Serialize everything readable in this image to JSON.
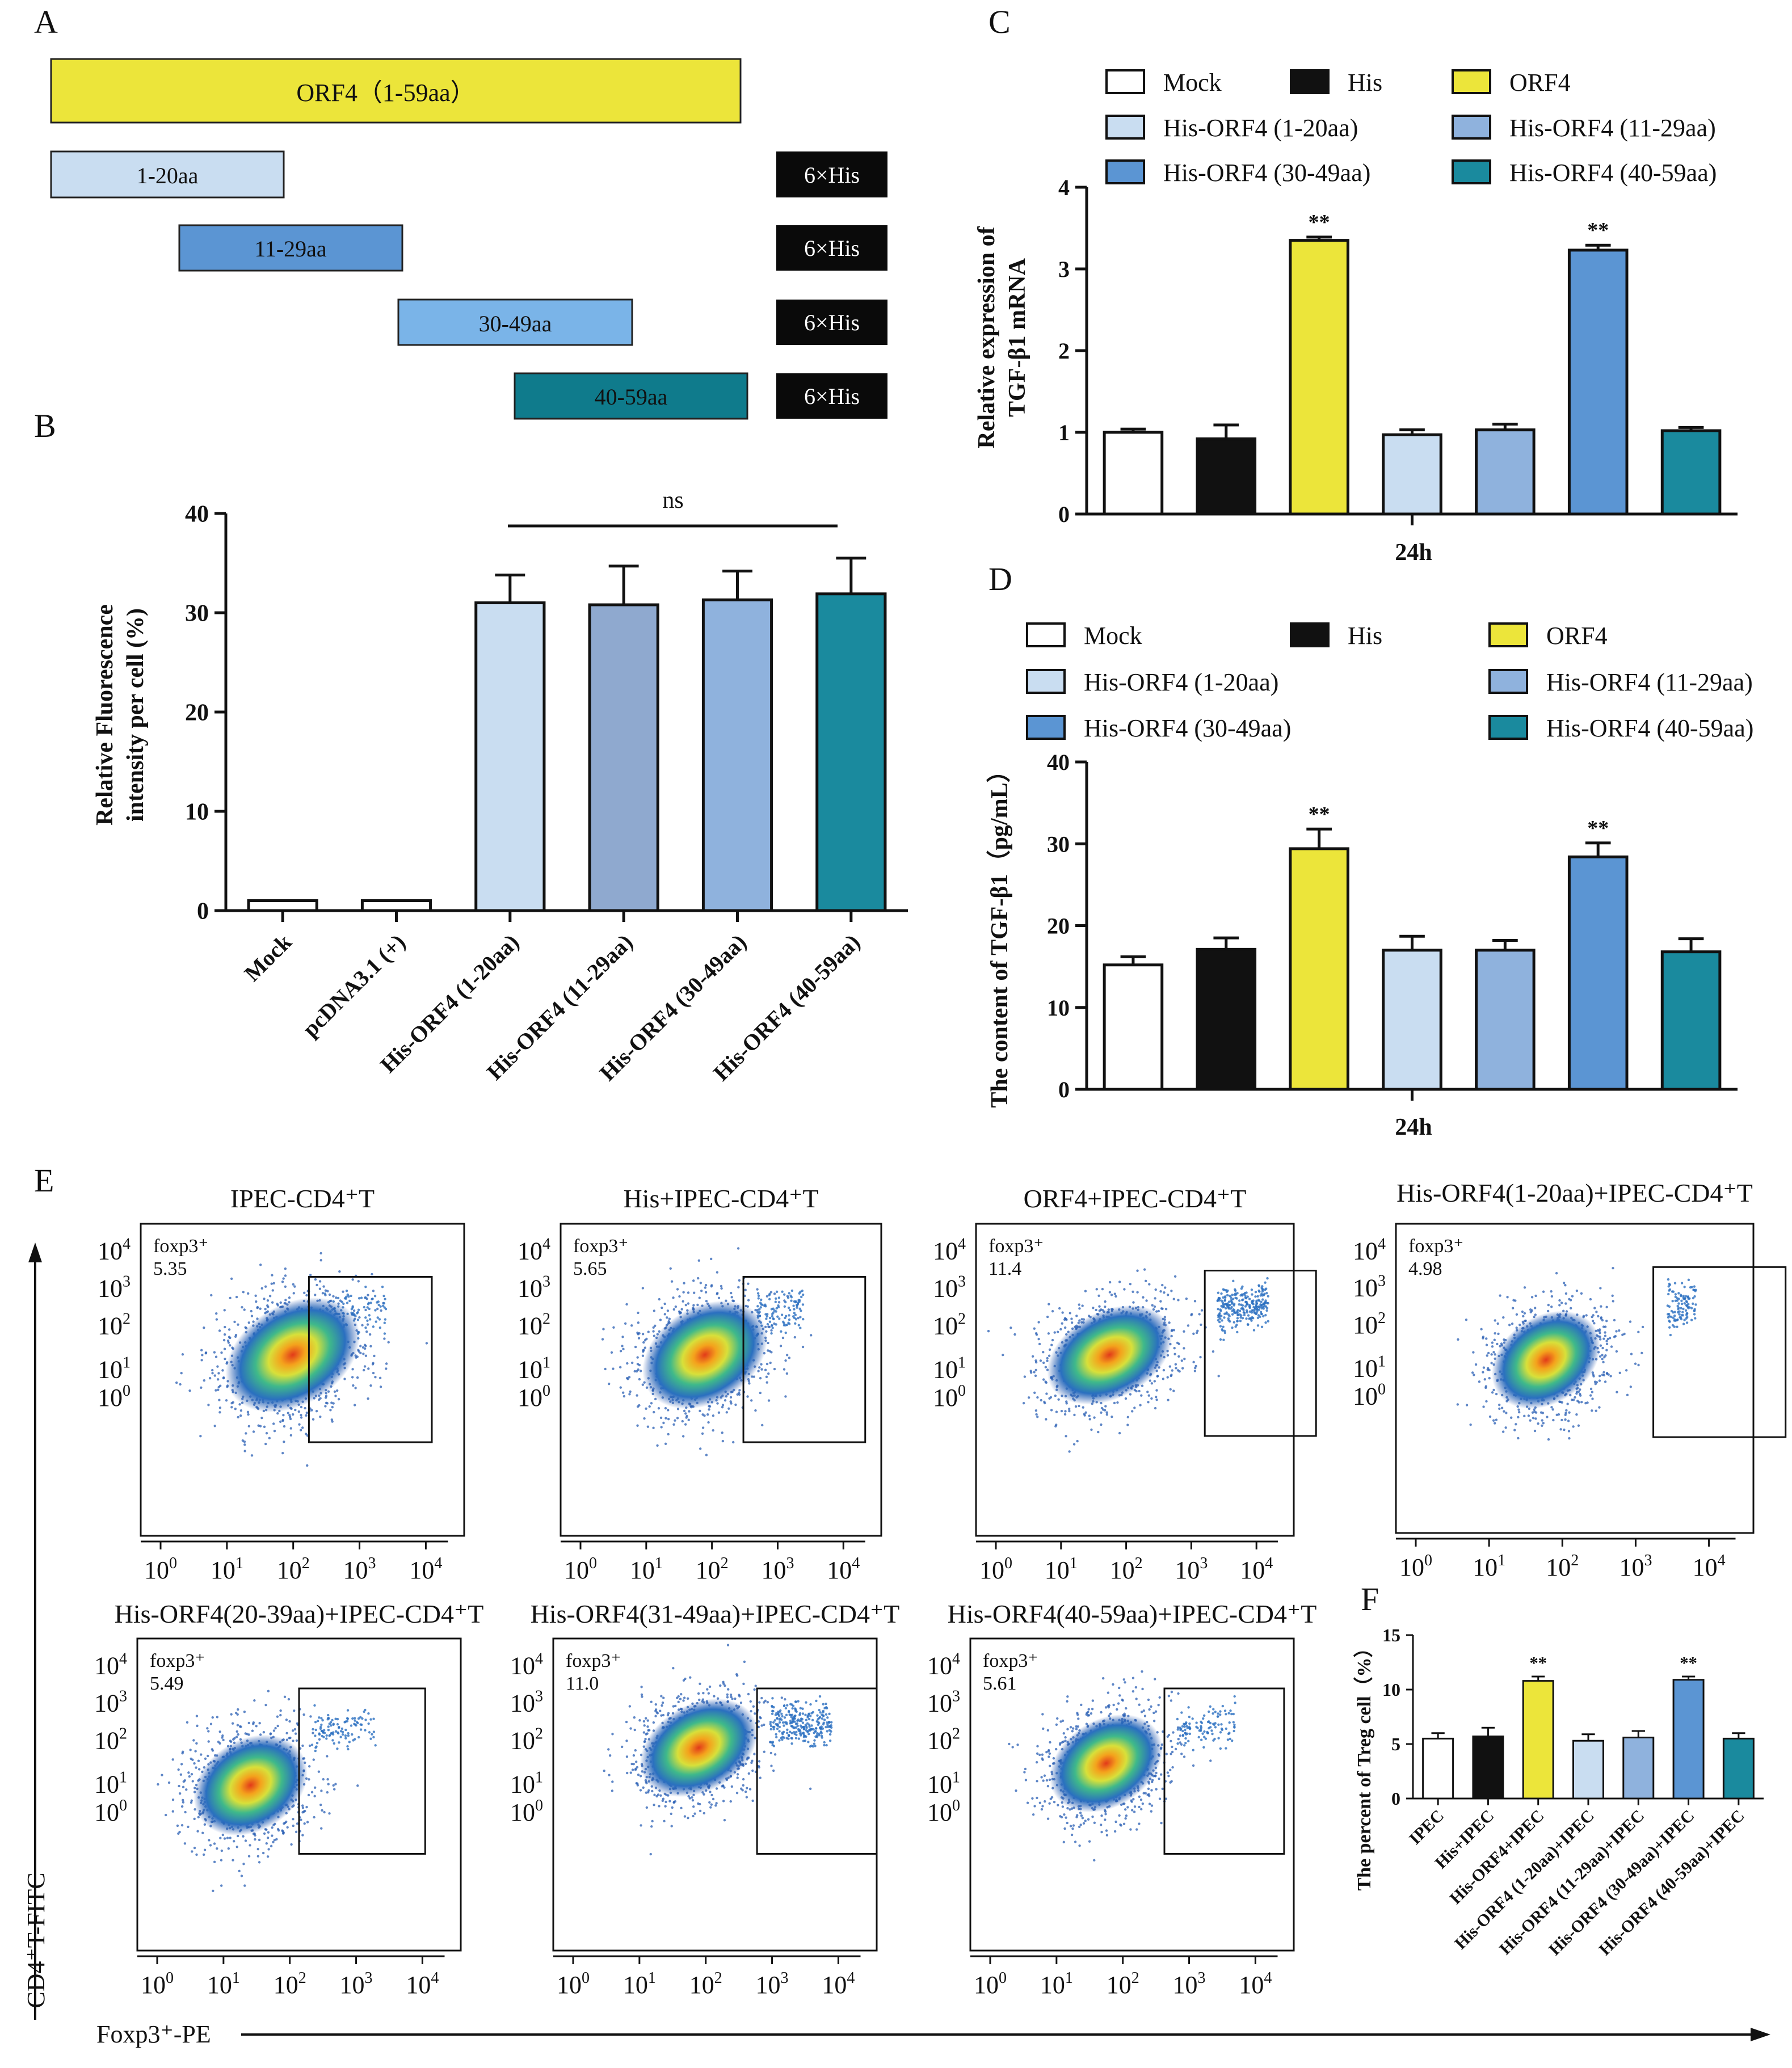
{
  "panel_labels": {
    "a": "A",
    "b": "B",
    "c": "C",
    "d": "D",
    "e": "E",
    "f": "F"
  },
  "colors": {
    "orf4": "#ece53a",
    "c120": "#c9ddf1",
    "c1129": "#8fb2dd",
    "c3049": "#5b95d3",
    "c4059": "#1a8a9e",
    "black": "#111111",
    "white": "#ffffff",
    "his_tag": "#0a0a0a"
  },
  "panel_a": {
    "full": "ORF4（1-59aa）",
    "fragments": [
      "1-20aa",
      "11-29aa",
      "30-49aa",
      "40-59aa"
    ],
    "tag": "6×His"
  },
  "legend": {
    "mock": "Mock",
    "his": "His",
    "orf4": "ORF4",
    "f120": "His-ORF4 (1-20aa)",
    "f1129": "His-ORF4 (11-29aa)",
    "f3049": "His-ORF4 (30-49aa)",
    "f4059": "His-ORF4 (40-59aa)"
  },
  "chart_data": [
    {
      "panel": "B",
      "type": "bar",
      "categories": [
        "Mock",
        "pcDNA3.1 (+)",
        "His-ORF4 (1-20aa)",
        "His-ORF4 (11-29aa)",
        "His-ORF4 (30-49aa)",
        "His-ORF4 (40-59aa)"
      ],
      "values": [
        1.0,
        1.0,
        31.0,
        30.8,
        31.3,
        31.9
      ],
      "errors": [
        0,
        0,
        2.8,
        3.9,
        2.9,
        3.6
      ],
      "ylabel_line1": "Relative Fluorescence",
      "ylabel_line2": "intensity per cell (%)",
      "ylim": [
        0,
        40
      ],
      "yticks": [
        "0",
        "10",
        "20",
        "30",
        "40"
      ],
      "annotation": "ns"
    },
    {
      "panel": "C",
      "type": "bar",
      "categories": [
        "Mock",
        "His",
        "ORF4",
        "His-ORF4 (1-20aa)",
        "His-ORF4 (11-29aa)",
        "His-ORF4 (30-49aa)",
        "His-ORF4 (40-59aa)"
      ],
      "values": [
        1.0,
        0.92,
        3.35,
        0.97,
        1.03,
        3.23,
        1.02
      ],
      "errors": [
        0.04,
        0.17,
        0.04,
        0.06,
        0.07,
        0.06,
        0.04
      ],
      "significance": [
        "",
        "",
        "**",
        "",
        "",
        "**",
        ""
      ],
      "ylabel_line1": "Relative expression of",
      "ylabel_line2": "TGF-β1 mRNA",
      "xlabel": "24h",
      "ylim": [
        0,
        4
      ],
      "yticks": [
        "0",
        "1",
        "2",
        "3",
        "4"
      ]
    },
    {
      "panel": "D",
      "type": "bar",
      "categories": [
        "Mock",
        "His",
        "ORF4",
        "His-ORF4 (1-20aa)",
        "His-ORF4 (11-29aa)",
        "His-ORF4 (30-49aa)",
        "His-ORF4 (40-59aa)"
      ],
      "values": [
        15.2,
        17.1,
        29.4,
        17.0,
        17.0,
        28.4,
        16.8
      ],
      "errors": [
        1.0,
        1.4,
        2.4,
        1.7,
        1.2,
        1.7,
        1.6
      ],
      "significance": [
        "",
        "",
        "**",
        "",
        "",
        "**",
        ""
      ],
      "ylabel": "The content of TGF-β1（pg/mL）",
      "xlabel": "24h",
      "ylim": [
        0,
        40
      ],
      "yticks": [
        "0",
        "10",
        "20",
        "30",
        "40"
      ]
    },
    {
      "panel": "F",
      "type": "bar",
      "categories": [
        "IPEC",
        "His+IPEC",
        "His-ORF4+IPEC",
        "His-ORF4 (1-20aa)+IPEC",
        "His-ORF4 (11-29aa)+IPEC",
        "His-ORF4 (30-49aa)+IPEC",
        "His-ORF4 (40-59aa)+IPEC"
      ],
      "values": [
        5.5,
        5.7,
        10.8,
        5.3,
        5.6,
        10.9,
        5.5
      ],
      "errors": [
        0.5,
        0.8,
        0.4,
        0.6,
        0.6,
        0.3,
        0.5
      ],
      "significance": [
        "",
        "",
        "**",
        "",
        "",
        "**",
        ""
      ],
      "ylabel": "The percent of  Treg cell（%）",
      "ylim": [
        0,
        15
      ],
      "yticks": [
        "0",
        "5",
        "10",
        "15"
      ]
    },
    {
      "panel": "E",
      "type": "scatter",
      "xlabel": "Foxp3⁺-PE",
      "ylabel": "CD4⁺T-FITC",
      "gate_label": "foxp3⁺",
      "plots": [
        {
          "title": "IPEC-CD4⁺T",
          "value": "5.35"
        },
        {
          "title": "His+IPEC-CD4⁺T",
          "value": "5.65"
        },
        {
          "title": "ORF4+IPEC-CD4⁺T",
          "value": "11.4"
        },
        {
          "title": "His-ORF4(1-20aa)+IPEC-CD4⁺T",
          "value": "4.98"
        },
        {
          "title": "His-ORF4(20-39aa)+IPEC-CD4⁺T",
          "value": "5.49"
        },
        {
          "title": "His-ORF4(31-49aa)+IPEC-CD4⁺T",
          "value": "11.0"
        },
        {
          "title": "His-ORF4(40-59aa)+IPEC-CD4⁺T",
          "value": "5.61"
        }
      ],
      "ticks": [
        "10",
        "10",
        "10",
        "10",
        "10"
      ],
      "tick_exps": [
        "0",
        "1",
        "2",
        "3",
        "4"
      ],
      "y_ticks_order": [
        "4",
        "3",
        "2",
        "1",
        "0"
      ]
    }
  ]
}
